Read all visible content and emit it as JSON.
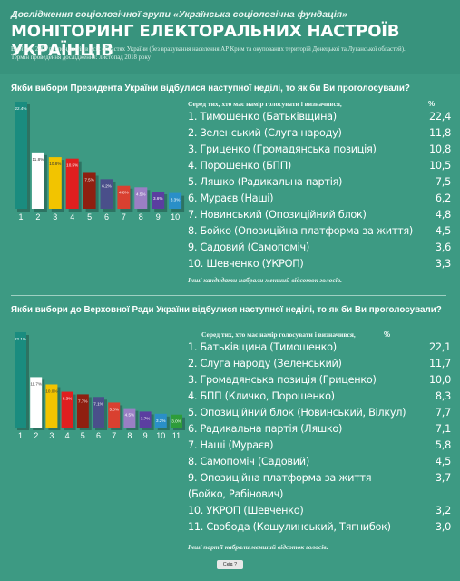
{
  "header": {
    "subtitle": "Дослідження соціологічної групи «Українська соціологічна фундація»",
    "title": "МОНІТОРИНГ ЕЛЕКТОРАЛЬНИХ НАСТРОЇВ УКРАЇНЦІВ",
    "note_line1": "Вибірка: 2500 респондентів в усіх областях України (без врахування населення АР Крим та окупованих територій Донецької та Луганської областей).",
    "note_line2": "Термін проведення дослідження: листопад 2018 року"
  },
  "colors": {
    "background": "#3d9a83",
    "bars": [
      "#1a8c7f",
      "#ffffff",
      "#f2c400",
      "#e01f1f",
      "#8f1f10",
      "#4a4f8a",
      "#d94030",
      "#9a7fc4",
      "#5b3ea0",
      "#2a8fc8",
      "#2e9c3a"
    ]
  },
  "chart_data": [
    {
      "type": "bar",
      "question": "Якби вибори Президента України відбулися наступної неділі, то як би Ви проголосували?",
      "panel_header": "Серед тих, хто має намір голосувати і визначився,",
      "pct_header": "%",
      "categories": [
        "1",
        "2",
        "3",
        "4",
        "5",
        "6",
        "7",
        "8",
        "9",
        "10"
      ],
      "values": [
        22.4,
        11.8,
        10.8,
        10.5,
        7.5,
        6.2,
        4.8,
        4.5,
        3.6,
        3.3
      ],
      "value_labels": [
        "22.4%",
        "11.8%",
        "10.8%",
        "10.5%",
        "7.5%",
        "6.2%",
        "4.8%",
        "4.5%",
        "3.6%",
        "3.3%"
      ],
      "items": [
        {
          "label": "1. Тимошенко (Батьківщина)",
          "value": "22,4"
        },
        {
          "label": "2. Зеленський  (Слуга народу)",
          "value": "11,8"
        },
        {
          "label": "3. Гриценко (Громадянська позиція)",
          "value": "10,8"
        },
        {
          "label": "4. Порошенко (БПП)",
          "value": "10,5"
        },
        {
          "label": "5. Ляшко (Радикальна партія)",
          "value": "7,5"
        },
        {
          "label": "6. Мураєв (Наші)",
          "value": "6,2"
        },
        {
          "label": "7. Новинський (Опозиційний блок)",
          "value": "4,8"
        },
        {
          "label": "8. Бойко (Опозиційна платформа за життя)",
          "value": "4,5"
        },
        {
          "label": "9. Садовий (Самопоміч)",
          "value": "3,6"
        },
        {
          "label": "10. Шевченко (УКРОП)",
          "value": "3,3"
        }
      ],
      "footnote": "Інші кандидати набрали менший відсоток голосів."
    },
    {
      "type": "bar",
      "question": "Якби вибори до Верховної Ради України відбулися наступної неділі, то як би Ви проголосували?",
      "panel_header": "Серед тих, хто має намір голосувати і визначився,",
      "pct_header": "%",
      "categories": [
        "1",
        "2",
        "3",
        "4",
        "5",
        "6",
        "7",
        "8",
        "9",
        "10",
        "11"
      ],
      "values": [
        22.1,
        11.7,
        10.0,
        8.3,
        7.7,
        7.1,
        5.8,
        4.5,
        3.7,
        3.2,
        3.0
      ],
      "value_labels": [
        "22.1%",
        "11.7%",
        "10.0%",
        "8.3%",
        "7.7%",
        "7.1%",
        "5.8%",
        "4.5%",
        "3.7%",
        "3.2%",
        "3.0%"
      ],
      "items": [
        {
          "label": "1. Батьківщина (Тимошенко)",
          "value": "22,1"
        },
        {
          "label": "2. Слуга народу  (Зеленський)",
          "value": "11,7"
        },
        {
          "label": "3. Громадянська позиція (Гриценко)",
          "value": "10,0"
        },
        {
          "label": "4. БПП (Кличко, Порошенко)",
          "value": "8,3"
        },
        {
          "label": "5. Опозиційний блок (Новинський, Вілкул)",
          "value": "7,7"
        },
        {
          "label": "6. Радикальна партія (Ляшко)",
          "value": "7,1"
        },
        {
          "label": "7. Наші  (Мураєв)",
          "value": "5,8"
        },
        {
          "label": "8. Самопоміч (Садовий)",
          "value": "4,5"
        },
        {
          "label": "9. Опозиційна платформа за життя",
          "value": "3,7"
        },
        {
          "label": "(Бойко, Рабінович)",
          "value": ""
        },
        {
          "label": "10. УКРОП (Шевченко)",
          "value": "3,2"
        },
        {
          "label": "11. Свобода (Кошулинський, Тягнибок)",
          "value": "3,0"
        }
      ],
      "footnote": "Інші партії набрали менший відсоток голосів."
    }
  ],
  "footer_button": "Скід ?"
}
